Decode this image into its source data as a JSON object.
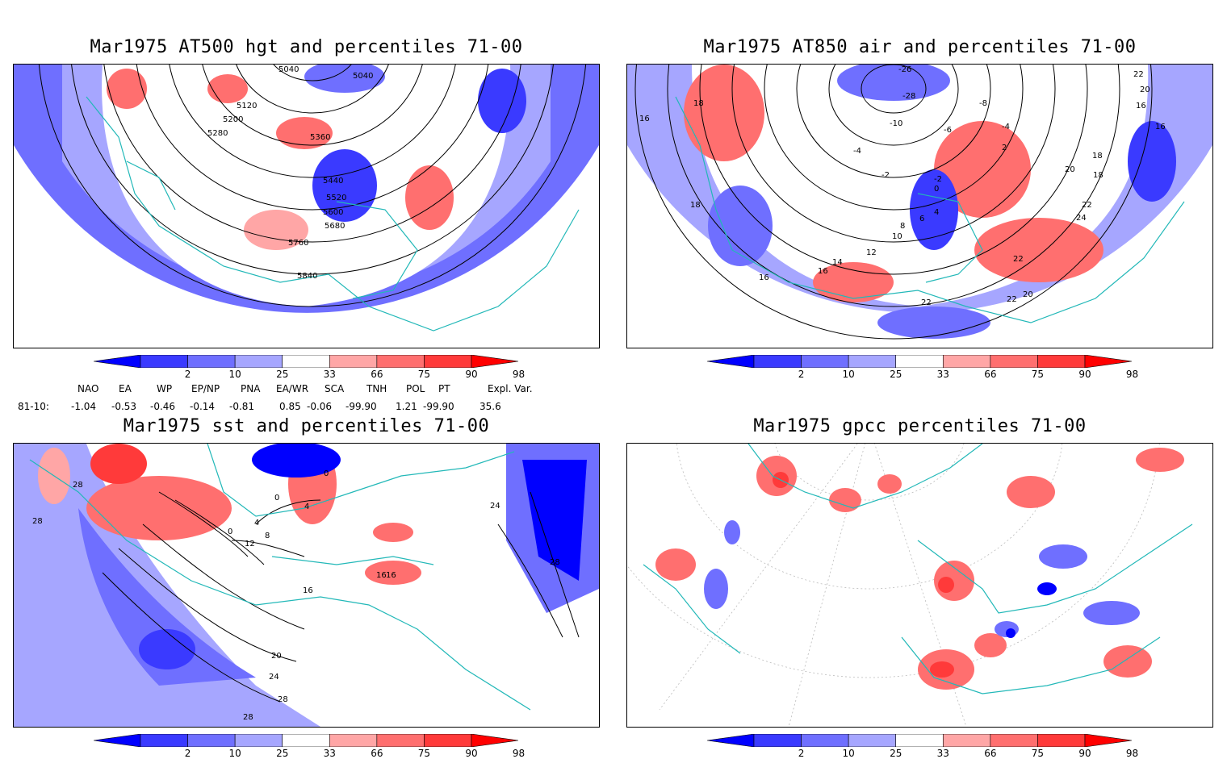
{
  "panels": {
    "p1": {
      "title": "Mar1975 AT500 hgt and percentiles 71-00",
      "contour_labels": [
        "5040",
        "5040",
        "5120",
        "5200",
        "5280",
        "5360",
        "5440",
        "5520",
        "5600",
        "5680",
        "5760",
        "5840"
      ]
    },
    "p2": {
      "title": "Mar1975 AT850 air and percentiles 71-00",
      "contour_labels": [
        "-26",
        "-28",
        "-10",
        "-8",
        "-6",
        "-4",
        "-4",
        "-2",
        "-2",
        "0",
        "2",
        "4",
        "6",
        "8",
        "10",
        "12",
        "14",
        "16",
        "16",
        "16",
        "18",
        "18",
        "18",
        "20",
        "20",
        "22",
        "22",
        "22",
        "24",
        "22",
        "20",
        "18",
        "16",
        "22",
        "16"
      ]
    },
    "p3": {
      "title": "Mar1975 sst and percentiles 71-00",
      "contour_labels": [
        "28",
        "28",
        "0",
        "4",
        "8",
        "0",
        "4",
        "12",
        "16",
        "20",
        "24",
        "28",
        "28",
        "0",
        "16",
        "16",
        "24",
        "28"
      ]
    },
    "p4": {
      "title": "Mar1975 gpcc percentiles 71-00",
      "contour_labels": []
    }
  },
  "colorbar": {
    "ticks": [
      "2",
      "10",
      "25",
      "33",
      "66",
      "75",
      "90",
      "98"
    ],
    "colors": [
      "#0000ff",
      "#3a3aff",
      "#6f6fff",
      "#a6a6ff",
      "#ffffff",
      "#ffa6a6",
      "#ff6f6f",
      "#ff3a3a",
      "#ff0000"
    ]
  },
  "indices": {
    "headers": [
      "NAO",
      "EA",
      "WP",
      "EP/NP",
      "PNA",
      "EA/WR",
      "SCA",
      "TNH",
      "POL",
      "PT",
      "Expl. Var."
    ],
    "row_label": "81-10:",
    "values": [
      "-1.04",
      "-0.53",
      "-0.46",
      "-0.14",
      "-0.81",
      "0.85",
      "-0.06",
      "-99.90",
      "1.21",
      "-99.90",
      "35.6"
    ]
  },
  "style": {
    "coast_color": "#22b8b8",
    "blue": "#5a5aff",
    "light_blue": "#a6a6ff",
    "red": "#ff6f6f",
    "light_red": "#ffa6a6"
  }
}
